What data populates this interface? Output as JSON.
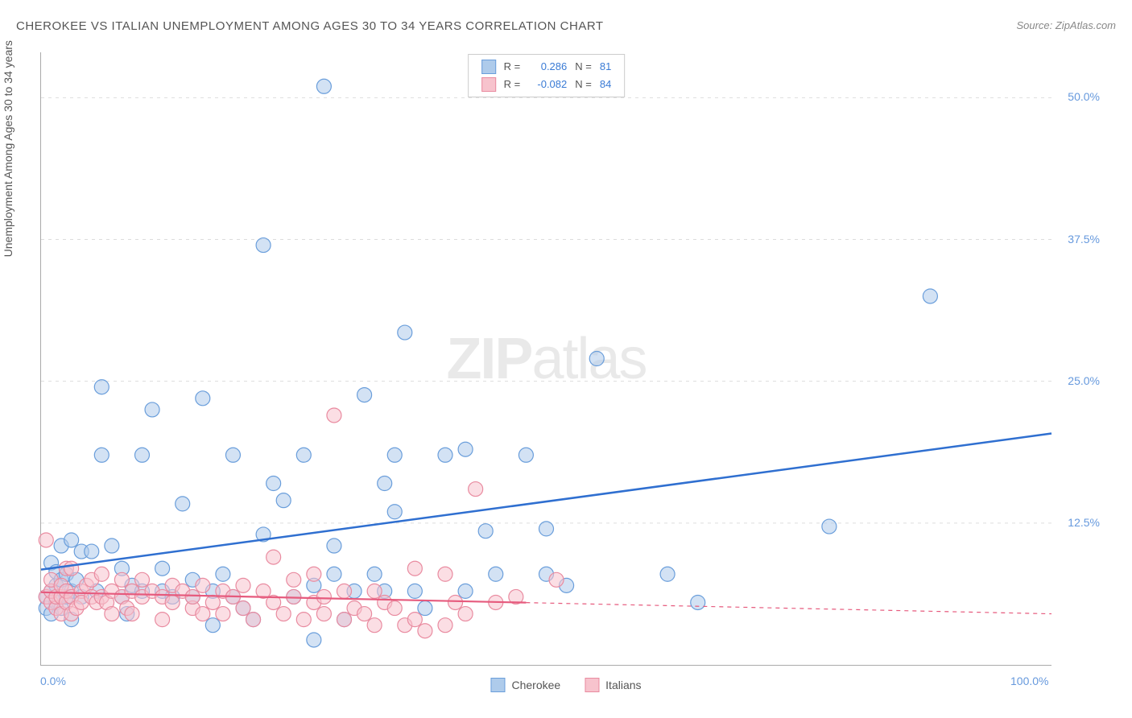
{
  "title": "CHEROKEE VS ITALIAN UNEMPLOYMENT AMONG AGES 30 TO 34 YEARS CORRELATION CHART",
  "source": "Source: ZipAtlas.com",
  "y_axis_label": "Unemployment Among Ages 30 to 34 years",
  "watermark_bold": "ZIP",
  "watermark_light": "atlas",
  "chart": {
    "type": "scatter",
    "xlim": [
      0,
      100
    ],
    "ylim": [
      0,
      54
    ],
    "x_ticks": [
      {
        "value": 0,
        "label": "0.0%"
      },
      {
        "value": 100,
        "label": "100.0%"
      }
    ],
    "y_ticks": [
      {
        "value": 12.5,
        "label": "12.5%"
      },
      {
        "value": 25.0,
        "label": "25.0%"
      },
      {
        "value": 37.5,
        "label": "37.5%"
      },
      {
        "value": 50.0,
        "label": "50.0%"
      }
    ],
    "grid_color": "#dddddd",
    "background_color": "#ffffff",
    "marker_radius": 9,
    "marker_opacity": 0.55,
    "series": [
      {
        "id": "cherokee",
        "label": "Cherokee",
        "fill": "#aecbeb",
        "stroke": "#6a9edb",
        "line_color": "#2f6fd0",
        "line_width": 2.5,
        "R": "0.286",
        "N": "81",
        "trend": {
          "x1": 0,
          "y1": 8.4,
          "x2": 100,
          "y2": 20.4,
          "solid_until_x": 100
        },
        "points": [
          [
            0.5,
            5.0
          ],
          [
            0.5,
            6.0
          ],
          [
            1,
            4.5
          ],
          [
            1,
            6.5
          ],
          [
            1,
            9.0
          ],
          [
            1.5,
            7.0
          ],
          [
            1.5,
            8.2
          ],
          [
            1.5,
            5.5
          ],
          [
            2,
            10.5
          ],
          [
            2,
            7.5
          ],
          [
            2,
            5.0
          ],
          [
            2.5,
            6.0
          ],
          [
            2.5,
            8.0
          ],
          [
            3,
            11.0
          ],
          [
            3,
            6.5
          ],
          [
            3,
            4.0
          ],
          [
            3.5,
            7.5
          ],
          [
            4,
            6.0
          ],
          [
            4,
            10.0
          ],
          [
            5,
            10.0
          ],
          [
            5.5,
            6.5
          ],
          [
            6,
            18.5
          ],
          [
            6,
            24.5
          ],
          [
            7,
            10.5
          ],
          [
            8,
            6.0
          ],
          [
            8,
            8.5
          ],
          [
            8.5,
            4.5
          ],
          [
            9,
            7.0
          ],
          [
            10,
            18.5
          ],
          [
            10,
            6.5
          ],
          [
            11,
            22.5
          ],
          [
            12,
            6.5
          ],
          [
            12,
            8.5
          ],
          [
            13,
            6.0
          ],
          [
            14,
            14.2
          ],
          [
            15,
            6.0
          ],
          [
            15,
            7.5
          ],
          [
            16,
            23.5
          ],
          [
            17,
            3.5
          ],
          [
            17,
            6.5
          ],
          [
            18,
            8.0
          ],
          [
            19,
            18.5
          ],
          [
            19,
            6.0
          ],
          [
            20,
            5.0
          ],
          [
            21,
            4.0
          ],
          [
            22,
            37.0
          ],
          [
            22,
            11.5
          ],
          [
            23,
            16.0
          ],
          [
            24,
            14.5
          ],
          [
            25,
            6.0
          ],
          [
            26,
            18.5
          ],
          [
            27,
            7.0
          ],
          [
            27,
            2.2
          ],
          [
            28,
            51.0
          ],
          [
            29,
            10.5
          ],
          [
            29,
            8.0
          ],
          [
            30,
            4.0
          ],
          [
            31,
            6.5
          ],
          [
            32,
            23.8
          ],
          [
            33,
            8.0
          ],
          [
            34,
            16.0
          ],
          [
            34,
            6.5
          ],
          [
            35,
            18.5
          ],
          [
            35,
            13.5
          ],
          [
            36,
            29.3
          ],
          [
            37,
            6.5
          ],
          [
            38,
            5.0
          ],
          [
            40,
            18.5
          ],
          [
            42,
            19.0
          ],
          [
            42,
            6.5
          ],
          [
            44,
            11.8
          ],
          [
            45,
            8.0
          ],
          [
            48,
            18.5
          ],
          [
            50,
            12.0
          ],
          [
            50,
            8.0
          ],
          [
            52,
            7.0
          ],
          [
            55,
            27.0
          ],
          [
            62,
            8.0
          ],
          [
            65,
            5.5
          ],
          [
            78,
            12.2
          ],
          [
            88,
            32.5
          ]
        ]
      },
      {
        "id": "italians",
        "label": "Italians",
        "fill": "#f7c3cd",
        "stroke": "#e98ba0",
        "line_color": "#e65a7d",
        "line_width": 2.2,
        "R": "-0.082",
        "N": "84",
        "trend": {
          "x1": 0,
          "y1": 6.4,
          "x2": 100,
          "y2": 4.5,
          "solid_until_x": 48
        },
        "points": [
          [
            0.5,
            6.0
          ],
          [
            0.5,
            11.0
          ],
          [
            1,
            5.5
          ],
          [
            1,
            6.5
          ],
          [
            1,
            7.5
          ],
          [
            1.5,
            5.0
          ],
          [
            1.5,
            6.0
          ],
          [
            2,
            6.0
          ],
          [
            2,
            7.0
          ],
          [
            2,
            4.5
          ],
          [
            2.5,
            5.5
          ],
          [
            2.5,
            6.5
          ],
          [
            2.5,
            8.5
          ],
          [
            3,
            8.5
          ],
          [
            3,
            6.0
          ],
          [
            3,
            4.5
          ],
          [
            3.5,
            5.0
          ],
          [
            4,
            6.5
          ],
          [
            4,
            5.5
          ],
          [
            4.5,
            7.0
          ],
          [
            5,
            7.5
          ],
          [
            5,
            6.0
          ],
          [
            5.5,
            5.5
          ],
          [
            6,
            6.0
          ],
          [
            6,
            8.0
          ],
          [
            6.5,
            5.5
          ],
          [
            7,
            4.5
          ],
          [
            7,
            6.5
          ],
          [
            8,
            6.0
          ],
          [
            8,
            7.5
          ],
          [
            8.5,
            5.0
          ],
          [
            9,
            6.5
          ],
          [
            9,
            4.5
          ],
          [
            10,
            6.0
          ],
          [
            10,
            7.5
          ],
          [
            11,
            6.5
          ],
          [
            12,
            6.0
          ],
          [
            12,
            4.0
          ],
          [
            13,
            5.5
          ],
          [
            13,
            7.0
          ],
          [
            14,
            6.5
          ],
          [
            15,
            5.0
          ],
          [
            15,
            6.0
          ],
          [
            16,
            7.0
          ],
          [
            16,
            4.5
          ],
          [
            17,
            5.5
          ],
          [
            18,
            6.5
          ],
          [
            18,
            4.5
          ],
          [
            19,
            6.0
          ],
          [
            20,
            5.0
          ],
          [
            20,
            7.0
          ],
          [
            21,
            4.0
          ],
          [
            22,
            6.5
          ],
          [
            23,
            5.5
          ],
          [
            23,
            9.5
          ],
          [
            24,
            4.5
          ],
          [
            25,
            7.5
          ],
          [
            25,
            6.0
          ],
          [
            26,
            4.0
          ],
          [
            27,
            5.5
          ],
          [
            27,
            8.0
          ],
          [
            28,
            4.5
          ],
          [
            28,
            6.0
          ],
          [
            29,
            22.0
          ],
          [
            30,
            4.0
          ],
          [
            30,
            6.5
          ],
          [
            31,
            5.0
          ],
          [
            32,
            4.5
          ],
          [
            33,
            6.5
          ],
          [
            33,
            3.5
          ],
          [
            34,
            5.5
          ],
          [
            35,
            5.0
          ],
          [
            36,
            3.5
          ],
          [
            37,
            4.0
          ],
          [
            37,
            8.5
          ],
          [
            38,
            3.0
          ],
          [
            40,
            8.0
          ],
          [
            40,
            3.5
          ],
          [
            41,
            5.5
          ],
          [
            42,
            4.5
          ],
          [
            43,
            15.5
          ],
          [
            45,
            5.5
          ],
          [
            47,
            6.0
          ],
          [
            51,
            7.5
          ]
        ]
      }
    ]
  },
  "legend_top_labels": {
    "R": "R =",
    "N": "N ="
  }
}
